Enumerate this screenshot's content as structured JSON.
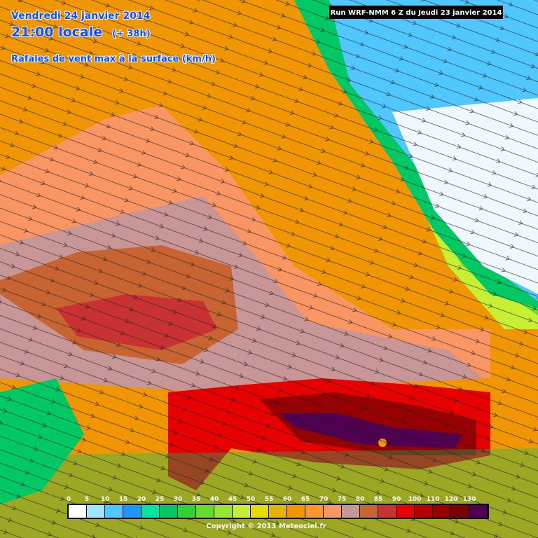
{
  "header": {
    "date": "Vendredi 24 janvier 2014",
    "time": "21:00 locale",
    "lead": "(+ 38h)",
    "field": "Rafales de vent max à la surface (km/h)",
    "run": "Run WRF-NMM 6 Z du Jeudi 23 janvier 2014"
  },
  "legend": {
    "ticks": [
      0,
      5,
      10,
      15,
      20,
      25,
      30,
      35,
      40,
      45,
      50,
      55,
      60,
      65,
      70,
      75,
      80,
      85,
      90,
      100,
      110,
      120,
      130
    ],
    "colors": [
      "#ffffff",
      "#a0e6ff",
      "#50c8ff",
      "#1e96ff",
      "#00e6a0",
      "#00c864",
      "#32d232",
      "#64dc32",
      "#96e632",
      "#c8f032",
      "#e6dc00",
      "#e6b400",
      "#f09600",
      "#fa9632",
      "#fa9664",
      "#c89696",
      "#c86432",
      "#c83232",
      "#e60000",
      "#b40000",
      "#960000",
      "#780000",
      "#500050"
    ]
  },
  "copyright": "Copyright © 2013 Meteociel.fr"
}
